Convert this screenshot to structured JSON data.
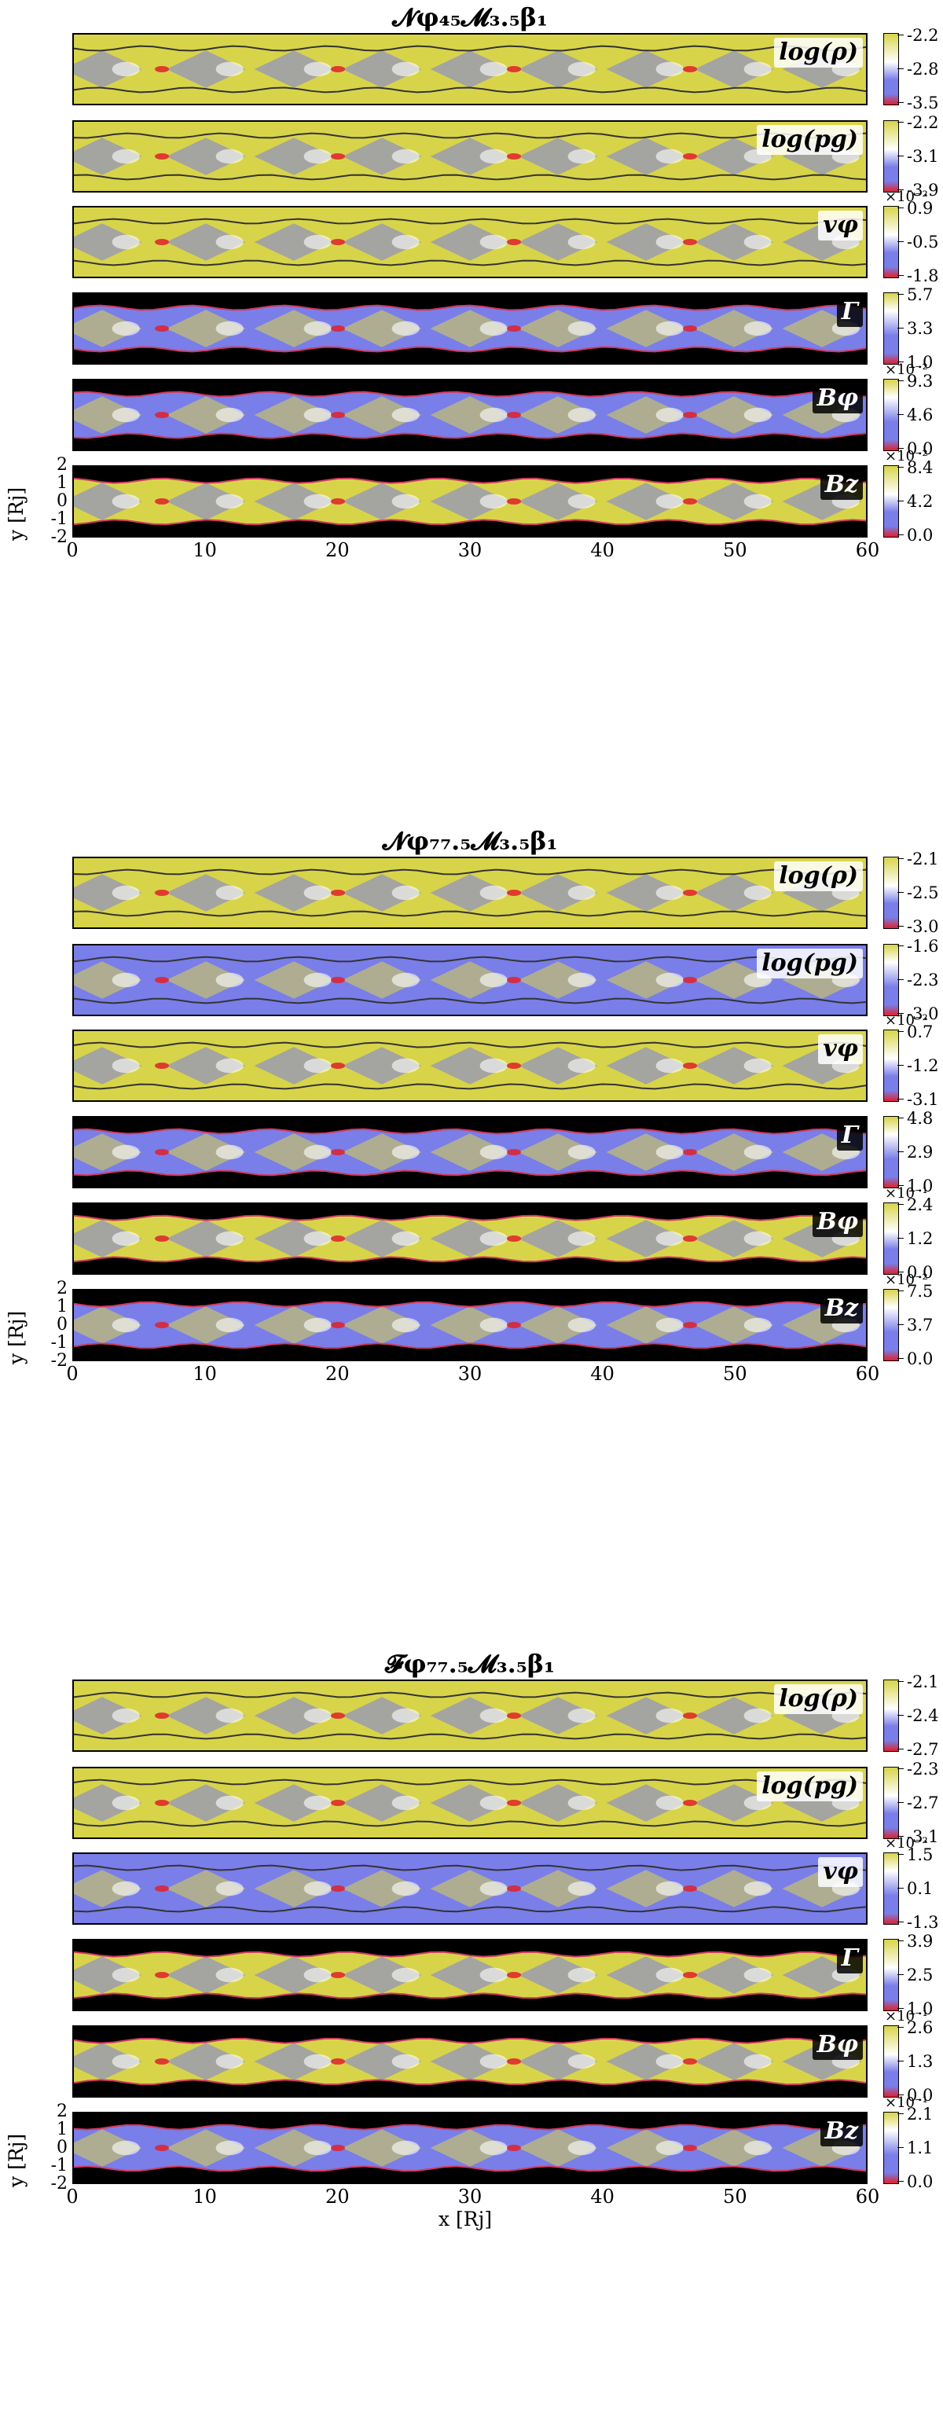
{
  "chart_data": [
    {
      "type": "heatmap",
      "title": "𝓝φ₄₅𝓜₃.₅β₁",
      "xlabel": "",
      "ylabel": "y [Rj]",
      "xlim": [
        0,
        60
      ],
      "ylim": [
        -2,
        2
      ],
      "xticks": [
        "0",
        "10",
        "20",
        "30",
        "40",
        "50",
        "60"
      ],
      "yticks": [
        "2",
        "1",
        "0",
        "-1",
        "-2"
      ],
      "panels": [
        {
          "variable": "log(ρ)",
          "cmap": "yellow",
          "colorbar_ticks": [
            "-2.2",
            "-2.8",
            "-3.5"
          ],
          "colorbar_exponent": "",
          "label_style": "light"
        },
        {
          "variable": "log(pg)",
          "cmap": "yellow",
          "colorbar_ticks": [
            "-2.2",
            "-3.1",
            "-3.9"
          ],
          "colorbar_exponent": "",
          "label_style": "light"
        },
        {
          "variable": "vφ",
          "cmap": "yellow",
          "colorbar_ticks": [
            "0.9",
            "-0.5",
            "-1.8"
          ],
          "colorbar_exponent": "×10⁻²",
          "label_style": "light"
        },
        {
          "variable": "Γ",
          "cmap": "blue",
          "colorbar_ticks": [
            "5.7",
            "3.3",
            "1.0"
          ],
          "colorbar_exponent": "",
          "label_style": "dark"
        },
        {
          "variable": "Bφ",
          "cmap": "blue",
          "colorbar_ticks": [
            "9.3",
            "4.6",
            "0.0"
          ],
          "colorbar_exponent": "×10⁻²",
          "label_style": "dark"
        },
        {
          "variable": "Bz",
          "cmap": "mixed",
          "colorbar_ticks": [
            "8.4",
            "4.2",
            "0.0"
          ],
          "colorbar_exponent": "×10⁻²",
          "label_style": "dark"
        }
      ]
    },
    {
      "type": "heatmap",
      "title": "𝓝φ₇₇.₅𝓜₃.₅β₁",
      "xlabel": "",
      "ylabel": "y [Rj]",
      "xlim": [
        0,
        60
      ],
      "ylim": [
        -2,
        2
      ],
      "xticks": [
        "0",
        "10",
        "20",
        "30",
        "40",
        "50",
        "60"
      ],
      "yticks": [
        "2",
        "1",
        "0",
        "-1",
        "-2"
      ],
      "panels": [
        {
          "variable": "log(ρ)",
          "cmap": "yellow",
          "colorbar_ticks": [
            "-2.1",
            "-2.5",
            "-3.0"
          ],
          "colorbar_exponent": "",
          "label_style": "light"
        },
        {
          "variable": "log(pg)",
          "cmap": "blue",
          "colorbar_ticks": [
            "-1.6",
            "-2.3",
            "-3.0"
          ],
          "colorbar_exponent": "",
          "label_style": "light"
        },
        {
          "variable": "vφ",
          "cmap": "yellow",
          "colorbar_ticks": [
            "0.7",
            "-1.2",
            "-3.1"
          ],
          "colorbar_exponent": "×10⁻²",
          "label_style": "light"
        },
        {
          "variable": "Γ",
          "cmap": "blue",
          "colorbar_ticks": [
            "4.8",
            "2.9",
            "1.0"
          ],
          "colorbar_exponent": "",
          "label_style": "dark"
        },
        {
          "variable": "Bφ",
          "cmap": "mixed",
          "colorbar_ticks": [
            "2.4",
            "1.2",
            "0.0"
          ],
          "colorbar_exponent": "×10⁻¹",
          "label_style": "dark"
        },
        {
          "variable": "Bz",
          "cmap": "blue",
          "colorbar_ticks": [
            "7.5",
            "3.7",
            "0.0"
          ],
          "colorbar_exponent": "×10⁻²",
          "label_style": "dark"
        }
      ]
    },
    {
      "type": "heatmap",
      "title": "𝓕φ₇₇.₅𝓜₃.₅β₁",
      "xlabel": "x [Rj]",
      "ylabel": "y [Rj]",
      "xlim": [
        0,
        60
      ],
      "ylim": [
        -2,
        2
      ],
      "xticks": [
        "0",
        "10",
        "20",
        "30",
        "40",
        "50",
        "60"
      ],
      "yticks": [
        "2",
        "1",
        "0",
        "-1",
        "-2"
      ],
      "panels": [
        {
          "variable": "log(ρ)",
          "cmap": "yellow",
          "colorbar_ticks": [
            "-2.1",
            "-2.4",
            "-2.7"
          ],
          "colorbar_exponent": "",
          "label_style": "light"
        },
        {
          "variable": "log(pg)",
          "cmap": "yellow",
          "colorbar_ticks": [
            "-2.3",
            "-2.7",
            "-3.1"
          ],
          "colorbar_exponent": "",
          "label_style": "light"
        },
        {
          "variable": "vφ",
          "cmap": "blue",
          "colorbar_ticks": [
            "1.5",
            "0.1",
            "-1.3"
          ],
          "colorbar_exponent": "×10⁻²",
          "label_style": "light"
        },
        {
          "variable": "Γ",
          "cmap": "yellow",
          "colorbar_ticks": [
            "3.9",
            "2.5",
            "1.0"
          ],
          "colorbar_exponent": "",
          "label_style": "dark"
        },
        {
          "variable": "Bφ",
          "cmap": "mixed",
          "colorbar_ticks": [
            "2.6",
            "1.3",
            "0.0"
          ],
          "colorbar_exponent": "×10⁻¹",
          "label_style": "dark"
        },
        {
          "variable": "Bz",
          "cmap": "blue",
          "colorbar_ticks": [
            "2.1",
            "1.1",
            "0.0"
          ],
          "colorbar_exponent": "×10⁻¹",
          "label_style": "dark"
        }
      ]
    }
  ],
  "colors": {
    "yellow": "#d8d44a",
    "blue": "#7a7ee8",
    "red": "#e0202a",
    "white": "#ffffff",
    "black": "#000000"
  }
}
